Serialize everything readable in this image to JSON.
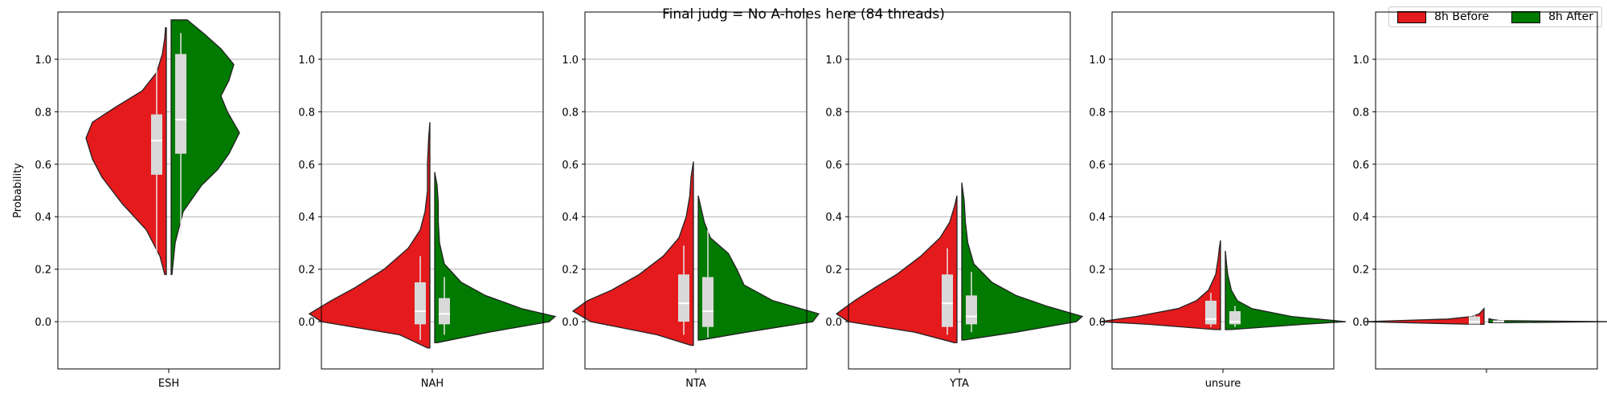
{
  "chart_data": {
    "type": "violin",
    "title": "Final judg = No A-holes here (84 threads)",
    "ylabel": "Probability",
    "ylim": [
      -0.18,
      1.18
    ],
    "yticks": [
      0.0,
      0.2,
      0.4,
      0.6,
      0.8,
      1.0
    ],
    "ytick_labels": [
      "0.0",
      "0.2",
      "0.4",
      "0.6",
      "0.8",
      "1.0"
    ],
    "grid": "horizontal",
    "legend": {
      "placement": "top-right",
      "entries": [
        {
          "label": "8h Before",
          "color": "#e41a1c"
        },
        {
          "label": "8h After",
          "color": "#007a00"
        }
      ]
    },
    "categories": [
      "ESH",
      "NAH",
      "NTA",
      "YTA",
      "unsure",
      ""
    ],
    "panels": [
      {
        "category": "ESH",
        "before": {
          "y": [
            0.18,
            0.25,
            0.35,
            0.45,
            0.55,
            0.62,
            0.7,
            0.76,
            0.82,
            0.88,
            0.95,
            1.02,
            1.08,
            1.12
          ],
          "density": [
            0.02,
            0.08,
            0.25,
            0.55,
            0.8,
            0.92,
            1.0,
            0.92,
            0.62,
            0.3,
            0.12,
            0.05,
            0.02,
            0.01
          ],
          "q1": 0.56,
          "median": 0.69,
          "q3": 0.79,
          "whisker_low": 0.25,
          "whisker_high": 1.0
        },
        "after": {
          "y": [
            0.18,
            0.3,
            0.42,
            0.52,
            0.58,
            0.64,
            0.72,
            0.8,
            0.86,
            0.92,
            0.98,
            1.04,
            1.1,
            1.15
          ],
          "density": [
            0.01,
            0.05,
            0.15,
            0.38,
            0.58,
            0.72,
            0.85,
            0.7,
            0.62,
            0.72,
            0.78,
            0.62,
            0.4,
            0.2
          ],
          "q1": 0.64,
          "median": 0.77,
          "q3": 1.02,
          "whisker_low": 0.33,
          "whisker_high": 1.1
        }
      },
      {
        "category": "NAH",
        "before": {
          "y": [
            -0.1,
            -0.05,
            0.0,
            0.03,
            0.08,
            0.13,
            0.2,
            0.28,
            0.35,
            0.42,
            0.5,
            0.6,
            0.7,
            0.76
          ],
          "density": [
            0.02,
            0.25,
            0.9,
            1.0,
            0.82,
            0.62,
            0.38,
            0.18,
            0.08,
            0.04,
            0.02,
            0.02,
            0.01,
            0.0
          ],
          "q1": -0.01,
          "median": 0.04,
          "q3": 0.15,
          "whisker_low": -0.07,
          "whisker_high": 0.25
        },
        "after": {
          "y": [
            -0.08,
            -0.04,
            0.0,
            0.02,
            0.05,
            0.1,
            0.15,
            0.22,
            0.3,
            0.38,
            0.45,
            0.52,
            0.57
          ],
          "density": [
            0.02,
            0.45,
            0.95,
            1.0,
            0.72,
            0.42,
            0.22,
            0.08,
            0.04,
            0.03,
            0.03,
            0.02,
            0.0
          ],
          "q1": -0.01,
          "median": 0.03,
          "q3": 0.09,
          "whisker_low": -0.05,
          "whisker_high": 0.17
        }
      },
      {
        "category": "NTA",
        "before": {
          "y": [
            -0.09,
            -0.05,
            0.0,
            0.04,
            0.08,
            0.12,
            0.18,
            0.25,
            0.32,
            0.4,
            0.48,
            0.55,
            0.61
          ],
          "density": [
            0.02,
            0.3,
            0.85,
            1.0,
            0.88,
            0.68,
            0.45,
            0.25,
            0.12,
            0.06,
            0.03,
            0.02,
            0.0
          ],
          "q1": 0.0,
          "median": 0.07,
          "q3": 0.18,
          "whisker_low": -0.05,
          "whisker_high": 0.29
        },
        "after": {
          "y": [
            -0.07,
            -0.04,
            0.0,
            0.03,
            0.08,
            0.14,
            0.2,
            0.26,
            0.32,
            0.38,
            0.44,
            0.48
          ],
          "density": [
            0.02,
            0.4,
            0.95,
            1.0,
            0.62,
            0.38,
            0.32,
            0.25,
            0.1,
            0.05,
            0.02,
            0.0
          ],
          "q1": -0.02,
          "median": 0.04,
          "q3": 0.17,
          "whisker_low": -0.06,
          "whisker_high": 0.35
        }
      },
      {
        "category": "YTA",
        "before": {
          "y": [
            -0.08,
            -0.04,
            0.0,
            0.03,
            0.08,
            0.13,
            0.18,
            0.25,
            0.32,
            0.38,
            0.44,
            0.48
          ],
          "density": [
            0.02,
            0.35,
            0.9,
            1.0,
            0.85,
            0.68,
            0.5,
            0.3,
            0.14,
            0.06,
            0.02,
            0.0
          ],
          "q1": -0.02,
          "median": 0.07,
          "q3": 0.18,
          "whisker_low": -0.05,
          "whisker_high": 0.28
        },
        "after": {
          "y": [
            -0.07,
            -0.04,
            0.0,
            0.02,
            0.06,
            0.1,
            0.15,
            0.22,
            0.3,
            0.38,
            0.46,
            0.53
          ],
          "density": [
            0.02,
            0.45,
            0.95,
            1.0,
            0.7,
            0.45,
            0.25,
            0.1,
            0.05,
            0.03,
            0.02,
            0.0
          ],
          "q1": -0.01,
          "median": 0.02,
          "q3": 0.1,
          "whisker_low": -0.04,
          "whisker_high": 0.19
        }
      },
      {
        "category": "unsure",
        "before": {
          "y": [
            -0.03,
            -0.01,
            0.0,
            0.02,
            0.05,
            0.08,
            0.12,
            0.18,
            0.24,
            0.28,
            0.31
          ],
          "density": [
            0.05,
            0.6,
            1.0,
            0.7,
            0.35,
            0.2,
            0.1,
            0.04,
            0.02,
            0.01,
            0.0
          ],
          "q1": -0.01,
          "median": 0.01,
          "q3": 0.08,
          "whisker_low": -0.02,
          "whisker_high": 0.11
        },
        "after": {
          "y": [
            -0.03,
            -0.01,
            0.0,
            0.02,
            0.05,
            0.08,
            0.12,
            0.18,
            0.22,
            0.27
          ],
          "density": [
            0.05,
            0.65,
            1.0,
            0.55,
            0.22,
            0.1,
            0.05,
            0.02,
            0.01,
            0.0
          ],
          "q1": -0.01,
          "median": 0.0,
          "q3": 0.04,
          "whisker_low": -0.02,
          "whisker_high": 0.06
        }
      },
      {
        "category": "",
        "before": {
          "y": [
            -0.01,
            0.0,
            0.01,
            0.02,
            0.03,
            0.04,
            0.05
          ],
          "density": [
            0.1,
            1.0,
            0.3,
            0.1,
            0.04,
            0.02,
            0.0
          ],
          "q1": -0.01,
          "median": 0.0,
          "q3": 0.02,
          "whisker_low": -0.01,
          "whisker_high": 0.03
        },
        "after": {
          "y": [
            -0.004,
            0.0,
            0.004,
            0.008,
            0.012
          ],
          "density": [
            0.1,
            1.0,
            0.1,
            0.03,
            0.0
          ],
          "q1": 0.0,
          "median": 0.0,
          "q3": 0.005,
          "whisker_low": 0.0,
          "whisker_high": 0.01
        }
      }
    ]
  }
}
